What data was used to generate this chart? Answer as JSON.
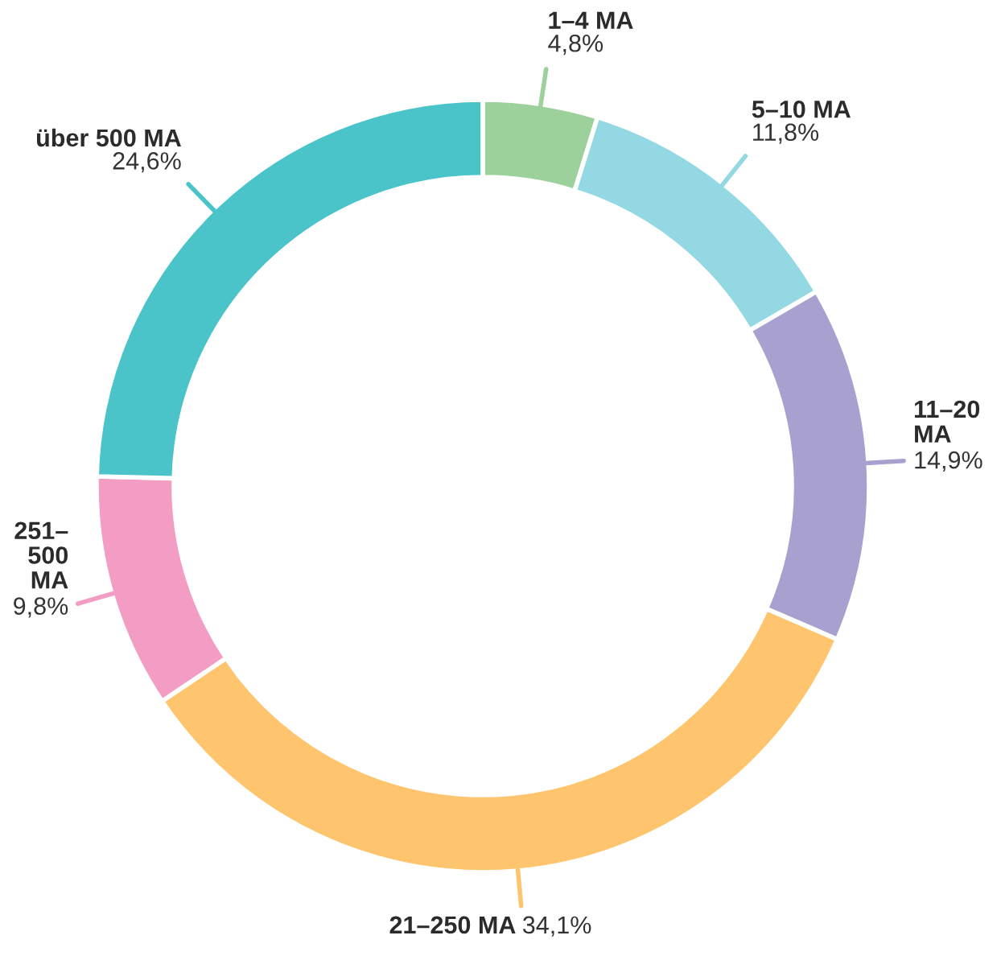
{
  "chart_data": {
    "type": "donut",
    "categories": [
      "1–4 MA",
      "5–10 MA",
      "11–20\nMA",
      "21–250 MA",
      "251–\n500\nMA",
      "über 500 MA"
    ],
    "values": [
      4.8,
      11.8,
      14.9,
      34.1,
      9.8,
      24.6
    ],
    "value_labels": [
      "4,8%",
      "11,8%",
      "14,9%",
      "34,1%",
      "9,8%",
      "24,6%"
    ],
    "colors": [
      "#9dd19b",
      "#93d8e3",
      "#a8a1cf",
      "#fec56e",
      "#f39cc4",
      "#4ac4c9"
    ]
  }
}
